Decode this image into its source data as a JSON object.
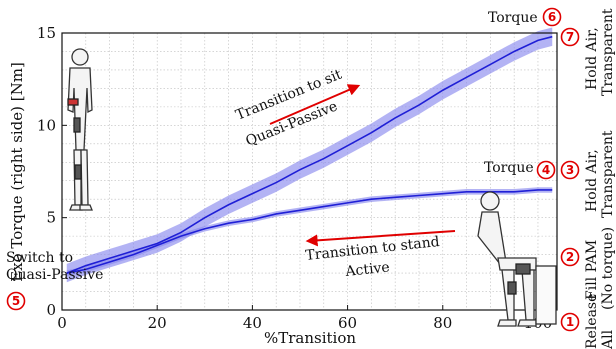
{
  "colors": {
    "line": "#1f1fd6",
    "band": "#8a8aee",
    "marker": "#e00000",
    "arrow": "#e00000",
    "grid": "#bdbdbd"
  },
  "chart_data": {
    "type": "line",
    "xlabel": "%Transition",
    "ylabel": "Exo Torque (right side) [Nm]",
    "xlim": [
      0,
      104
    ],
    "ylim": [
      0,
      15
    ],
    "xticks": [
      "0",
      "20",
      "40",
      "60",
      "80",
      "100"
    ],
    "yticks": [
      "0",
      "5",
      "10",
      "15"
    ],
    "grid": true,
    "series": [
      {
        "x": [
          1,
          5,
          10,
          15,
          20,
          25,
          30,
          35,
          40,
          45,
          50,
          55,
          60,
          65,
          70,
          75,
          80,
          85,
          90,
          95,
          100,
          103
        ],
        "values": [
          2.0,
          2.4,
          2.8,
          3.2,
          3.6,
          4.2,
          5.0,
          5.7,
          6.3,
          6.9,
          7.6,
          8.2,
          8.9,
          9.6,
          10.4,
          11.1,
          11.9,
          12.6,
          13.3,
          14.0,
          14.6,
          14.8
        ],
        "band": 0.5
      },
      {
        "x": [
          1,
          5,
          10,
          15,
          20,
          25,
          30,
          35,
          40,
          45,
          50,
          55,
          60,
          65,
          70,
          75,
          80,
          85,
          90,
          95,
          100,
          103
        ],
        "values": [
          2.0,
          2.2,
          2.6,
          3.0,
          3.5,
          4.0,
          4.4,
          4.7,
          4.9,
          5.2,
          5.4,
          5.6,
          5.8,
          6.0,
          6.1,
          6.2,
          6.3,
          6.4,
          6.4,
          6.4,
          6.5,
          6.5
        ],
        "band": 0.15
      }
    ]
  },
  "annotations": {
    "arrow_up_label": "Transition to sit",
    "arrow_up_sublabel": "Quasi-Passive",
    "arrow_down_label": "Transition to stand",
    "arrow_down_sublabel": "Active",
    "switch_label_1": "Switch to",
    "switch_label_2": "Quasi-Passive",
    "torque_high": "Torque",
    "torque_low": "Torque"
  },
  "markers": {
    "m1": "1",
    "m2": "2",
    "m3": "3",
    "m4": "4",
    "m5": "5",
    "m6": "6",
    "m7": "7"
  },
  "phases": {
    "release_1": "Release",
    "release_2": "All",
    "fill_1": "Fill PAM",
    "fill_2": "(No torque)",
    "hold1_1": "Hold Air,",
    "hold1_2": "Transparent",
    "hold2_1": "Hold Air,",
    "hold2_2": "Transparent"
  },
  "illustrations": {
    "standing": "standing-person-with-exoskeleton",
    "sitting": "sitting-person-with-exoskeleton"
  }
}
